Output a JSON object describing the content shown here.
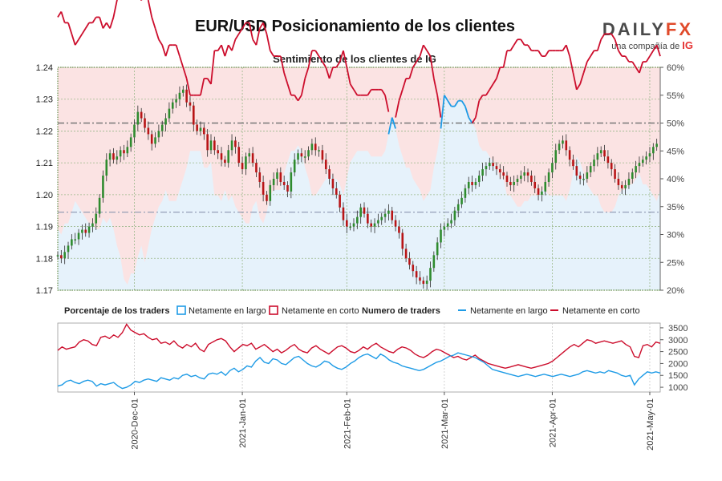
{
  "title": "EUR/USD Posicionamiento de los clientes",
  "brand": {
    "logo_main": "DAILY",
    "logo_fx": "FX",
    "tagline": "una compañía de",
    "tagline_ig": "IG"
  },
  "colors": {
    "long": "#1e9be6",
    "short": "#cc0d2c",
    "candle_up": "#2e8b2e",
    "candle_down": "#b81416",
    "bg_short": "#fbe3e3",
    "bg_long": "#e6f2fb",
    "axis_green": "#3a7d1a"
  },
  "chart_data": [
    {
      "type": "line",
      "subtitle": "Sentimiento de los clientes de IG",
      "price_axis": {
        "ticks": [
          "1.24",
          "1.23",
          "1.22",
          "1.21",
          "1.20",
          "1.19",
          "1.18",
          "1.17"
        ],
        "ylim": [
          1.17,
          1.24
        ]
      },
      "pct_axis": {
        "ticks": [
          "60%",
          "55%",
          "50%",
          "45%",
          "40%",
          "35%",
          "30%",
          "25%",
          "20%"
        ],
        "ylim": [
          20,
          60
        ]
      },
      "x_axis_ticks": [
        "2020-Dec-01",
        "2021-Jan-01",
        "2021-Feb-01",
        "2021-Mar-01",
        "2021-Apr-01",
        "2021-May-01"
      ],
      "reference_levels_pct": [
        50,
        34
      ],
      "series": [
        {
          "name": "Netamente en corto",
          "values": [
            69,
            70,
            68,
            68,
            66,
            64,
            65,
            66,
            67,
            68,
            68,
            69,
            69,
            67,
            68,
            67,
            69,
            72,
            74,
            78,
            79,
            77,
            77,
            74,
            72,
            75,
            72,
            69,
            67,
            65,
            64,
            62,
            64,
            64,
            64,
            62,
            60,
            58,
            55,
            55,
            55,
            55,
            58,
            58,
            57,
            63,
            63,
            64,
            62,
            64,
            63,
            65,
            66,
            67,
            68,
            68,
            65,
            64,
            67,
            68,
            66,
            63,
            62,
            62,
            62,
            59,
            57,
            55,
            55,
            54,
            55,
            58,
            60,
            63,
            63,
            62,
            61,
            60,
            58,
            60,
            60,
            61,
            63,
            60,
            57,
            56,
            55,
            55,
            55,
            55,
            56,
            56,
            56,
            56,
            55,
            52,
            49,
            51,
            54,
            56,
            58,
            58,
            60,
            61,
            62,
            64,
            63,
            62,
            58,
            55,
            51,
            45,
            46,
            47,
            47,
            46,
            46,
            47,
            49,
            50,
            51,
            54,
            55,
            55,
            56,
            57,
            58,
            60,
            60,
            63,
            63,
            64,
            65,
            65,
            64,
            64,
            63,
            63,
            63,
            62,
            62,
            63,
            63,
            63,
            63,
            63,
            64,
            62,
            59,
            56,
            57,
            59,
            61,
            62,
            63,
            63,
            65,
            66,
            66,
            66,
            65,
            63,
            62,
            62,
            61,
            61,
            60,
            59,
            61,
            61,
            62,
            63,
            64,
            62
          ]
        },
        {
          "name": "Netamente en largo",
          "values": [
            31,
            30,
            32,
            32,
            34,
            36,
            35,
            34,
            33,
            32,
            32,
            31,
            31,
            33,
            32,
            33,
            31,
            28,
            26,
            22,
            21,
            23,
            23,
            26,
            28,
            25,
            28,
            31,
            33,
            35,
            36,
            38,
            36,
            36,
            36,
            38,
            40,
            42,
            45,
            45,
            45,
            45,
            42,
            42,
            43,
            37,
            37,
            36,
            38,
            36,
            37,
            35,
            34,
            33,
            32,
            32,
            35,
            36,
            33,
            32,
            34,
            37,
            38,
            38,
            38,
            41,
            43,
            45,
            45,
            46,
            45,
            42,
            40,
            37,
            37,
            38,
            39,
            40,
            42,
            40,
            40,
            39,
            37,
            40,
            43,
            44,
            45,
            45,
            45,
            45,
            44,
            44,
            44,
            44,
            45,
            48,
            51,
            49,
            46,
            44,
            42,
            42,
            40,
            39,
            38,
            36,
            37,
            38,
            42,
            45,
            49,
            55,
            54,
            53,
            53,
            54,
            54,
            53,
            51,
            50,
            49,
            46,
            45,
            45,
            44,
            43,
            42,
            40,
            40,
            37,
            37,
            36,
            35,
            35,
            36,
            36,
            37,
            37,
            37,
            38,
            38,
            37,
            37,
            37,
            37,
            37,
            36,
            38,
            41,
            44,
            43,
            41,
            39,
            38,
            37,
            37,
            35,
            34,
            34,
            34,
            35,
            37,
            38,
            38,
            39,
            39,
            40,
            41,
            39,
            39,
            38,
            37,
            36,
            38
          ]
        },
        {
          "name": "EUR/USD",
          "values": [
            1.181,
            1.18,
            1.182,
            1.184,
            1.186,
            1.186,
            1.188,
            1.189,
            1.188,
            1.19,
            1.191,
            1.194,
            1.199,
            1.206,
            1.211,
            1.213,
            1.211,
            1.212,
            1.214,
            1.213,
            1.215,
            1.218,
            1.222,
            1.226,
            1.224,
            1.221,
            1.219,
            1.216,
            1.218,
            1.22,
            1.222,
            1.224,
            1.227,
            1.229,
            1.23,
            1.232,
            1.233,
            1.229,
            1.228,
            1.222,
            1.22,
            1.221,
            1.219,
            1.214,
            1.217,
            1.214,
            1.213,
            1.211,
            1.21,
            1.214,
            1.217,
            1.215,
            1.21,
            1.208,
            1.212,
            1.213,
            1.21,
            1.207,
            1.204,
            1.2,
            1.198,
            1.203,
            1.205,
            1.207,
            1.204,
            1.203,
            1.201,
            1.207,
            1.211,
            1.213,
            1.212,
            1.212,
            1.214,
            1.216,
            1.214,
            1.214,
            1.211,
            1.208,
            1.205,
            1.202,
            1.2,
            1.196,
            1.192,
            1.19,
            1.19,
            1.191,
            1.193,
            1.196,
            1.194,
            1.191,
            1.19,
            1.191,
            1.192,
            1.193,
            1.194,
            1.195,
            1.192,
            1.19,
            1.188,
            1.183,
            1.18,
            1.178,
            1.176,
            1.174,
            1.173,
            1.172,
            1.173,
            1.177,
            1.181,
            1.185,
            1.189,
            1.19,
            1.191,
            1.192,
            1.195,
            1.197,
            1.199,
            1.202,
            1.204,
            1.203,
            1.204,
            1.206,
            1.208,
            1.209,
            1.21,
            1.209,
            1.208,
            1.207,
            1.206,
            1.204,
            1.203,
            1.204,
            1.205,
            1.206,
            1.207,
            1.206,
            1.204,
            1.202,
            1.2,
            1.201,
            1.204,
            1.207,
            1.21,
            1.214,
            1.216,
            1.217,
            1.214,
            1.211,
            1.209,
            1.206,
            1.205,
            1.205,
            1.207,
            1.209,
            1.211,
            1.213,
            1.214,
            1.212,
            1.21,
            1.208,
            1.205,
            1.203,
            1.202,
            1.203,
            1.205,
            1.207,
            1.209,
            1.21,
            1.211,
            1.212,
            1.213,
            1.215,
            1.216
          ]
        }
      ]
    },
    {
      "type": "line",
      "legend": {
        "pct_heading": "Porcentaje de los traders",
        "num_heading": "Numero de traders",
        "long_label": "Netamente en largo",
        "short_label": "Netamente en corto"
      },
      "y_ticks": [
        "3500",
        "3000",
        "2500",
        "2000",
        "1500",
        "1000"
      ],
      "ylim": [
        800,
        3700
      ],
      "series": [
        {
          "name": "Netamente en corto",
          "values": [
            2550,
            2700,
            2600,
            2650,
            2700,
            2900,
            3000,
            2950,
            2800,
            2750,
            3100,
            3150,
            3050,
            3200,
            3100,
            3300,
            3650,
            3400,
            3300,
            3200,
            3250,
            3100,
            3000,
            3050,
            2850,
            2900,
            2800,
            2950,
            2750,
            2650,
            2800,
            2700,
            2850,
            2600,
            2500,
            2800,
            2900,
            3000,
            3050,
            2950,
            2700,
            2500,
            2650,
            2800,
            2750,
            2850,
            2600,
            2700,
            2800,
            2650,
            2500,
            2600,
            2450,
            2550,
            2700,
            2800,
            2600,
            2500,
            2450,
            2650,
            2750,
            2600,
            2500,
            2400,
            2550,
            2700,
            2750,
            2650,
            2500,
            2450,
            2550,
            2700,
            2600,
            2750,
            2850,
            2700,
            2600,
            2500,
            2450,
            2600,
            2700,
            2650,
            2550,
            2400,
            2300,
            2250,
            2350,
            2500,
            2600,
            2550,
            2450,
            2350,
            2250,
            2300,
            2200,
            2150,
            2250,
            2350,
            2200,
            2100,
            2000,
            1950,
            1900,
            1850,
            1800,
            1850,
            1900,
            1950,
            1900,
            1850,
            1800,
            1850,
            1900,
            1950,
            2000,
            2100,
            2250,
            2400,
            2550,
            2700,
            2800,
            2700,
            2850,
            3000,
            2950,
            2850,
            2900,
            2950,
            2900,
            2850,
            2900,
            2950,
            2800,
            2700,
            2300,
            2250,
            2750,
            2800,
            2700,
            2900,
            2850
          ]
        },
        {
          "name": "Netamente en largo",
          "values": [
            1050,
            1100,
            1250,
            1300,
            1200,
            1150,
            1250,
            1300,
            1250,
            1050,
            1150,
            1100,
            1150,
            1200,
            1050,
            950,
            1000,
            1100,
            1250,
            1200,
            1300,
            1350,
            1300,
            1250,
            1400,
            1350,
            1300,
            1400,
            1350,
            1500,
            1550,
            1450,
            1500,
            1400,
            1350,
            1550,
            1600,
            1550,
            1650,
            1500,
            1700,
            1800,
            1650,
            1750,
            1900,
            1850,
            2100,
            2250,
            2050,
            2000,
            2200,
            2150,
            2000,
            1950,
            2100,
            2250,
            2300,
            2150,
            2000,
            1900,
            1850,
            1950,
            2100,
            2050,
            1900,
            1800,
            1750,
            1850,
            2000,
            2100,
            2250,
            2350,
            2400,
            2300,
            2200,
            2400,
            2300,
            2150,
            2050,
            2000,
            1900,
            1850,
            1800,
            1750,
            1700,
            1750,
            1850,
            1950,
            2050,
            2100,
            2200,
            2300,
            2350,
            2450,
            2400,
            2350,
            2300,
            2250,
            2150,
            2050,
            1900,
            1750,
            1700,
            1650,
            1600,
            1550,
            1500,
            1450,
            1500,
            1550,
            1500,
            1450,
            1500,
            1550,
            1500,
            1450,
            1500,
            1550,
            1500,
            1450,
            1500,
            1550,
            1650,
            1700,
            1650,
            1600,
            1650,
            1600,
            1700,
            1650,
            1600,
            1500,
            1450,
            1500,
            1100,
            1350,
            1500,
            1650,
            1600,
            1650,
            1600
          ]
        }
      ]
    }
  ]
}
